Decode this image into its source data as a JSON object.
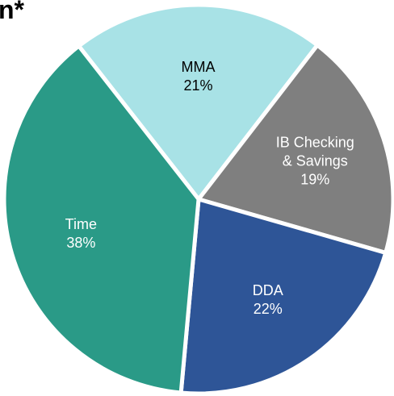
{
  "chart_data": {
    "type": "pie",
    "title": "n*",
    "categories": [
      "MMA",
      "IB Checking & Savings",
      "DDA",
      "Time"
    ],
    "values": [
      21,
      19,
      22,
      38
    ],
    "value_labels": [
      "21%",
      "19%",
      "22%",
      "38%"
    ],
    "colors": [
      "#a8e2e6",
      "#7f7f7f",
      "#2e5597",
      "#2a9a87"
    ],
    "label_colors": [
      "#000000",
      "#ffffff",
      "#ffffff",
      "#ffffff"
    ]
  }
}
